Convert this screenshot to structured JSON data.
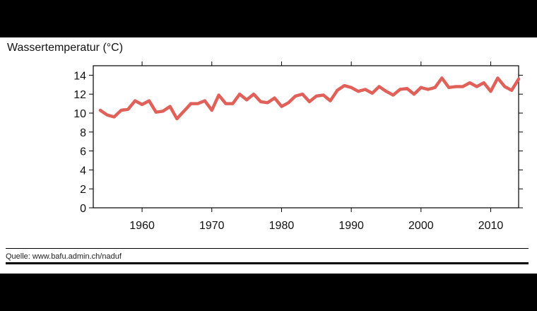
{
  "chart_data": {
    "type": "line",
    "title": "",
    "ylabel": "Wassertemperatur (°C)",
    "xlabel": "",
    "xlim": [
      1953,
      2014
    ],
    "ylim": [
      0,
      15
    ],
    "yticks": [
      0,
      2,
      4,
      6,
      8,
      10,
      12,
      14
    ],
    "xticks": [
      1960,
      1970,
      1980,
      1990,
      2000,
      2010
    ],
    "grid": false,
    "series": [
      {
        "name": "Wassertemperatur",
        "color": "#e0605a",
        "x": [
          1954,
          1955,
          1956,
          1957,
          1958,
          1959,
          1960,
          1961,
          1962,
          1963,
          1964,
          1965,
          1966,
          1967,
          1968,
          1969,
          1970,
          1971,
          1972,
          1973,
          1974,
          1975,
          1976,
          1977,
          1978,
          1979,
          1980,
          1981,
          1982,
          1983,
          1984,
          1985,
          1986,
          1987,
          1988,
          1989,
          1990,
          1991,
          1992,
          1993,
          1994,
          1995,
          1996,
          1997,
          1998,
          1999,
          2000,
          2001,
          2002,
          2003,
          2004,
          2005,
          2006,
          2007,
          2008,
          2009,
          2010,
          2011,
          2012,
          2013,
          2014
        ],
        "values": [
          10.3,
          9.8,
          9.6,
          10.3,
          10.4,
          11.3,
          10.9,
          11.3,
          10.1,
          10.2,
          10.7,
          9.4,
          10.2,
          11.0,
          11.0,
          11.3,
          10.3,
          11.9,
          11.0,
          11.0,
          12.0,
          11.4,
          12.0,
          11.2,
          11.1,
          11.6,
          10.7,
          11.1,
          11.8,
          12.0,
          11.2,
          11.8,
          11.9,
          11.3,
          12.4,
          12.9,
          12.7,
          12.3,
          12.5,
          12.1,
          12.8,
          12.3,
          11.9,
          12.5,
          12.6,
          12.0,
          12.7,
          12.5,
          12.7,
          13.7,
          12.7,
          12.8,
          12.8,
          13.2,
          12.8,
          13.2,
          12.3,
          13.7,
          12.8,
          12.4,
          13.6
        ]
      }
    ]
  },
  "source": "Quelle: www.bafu.admin.ch/naduf"
}
